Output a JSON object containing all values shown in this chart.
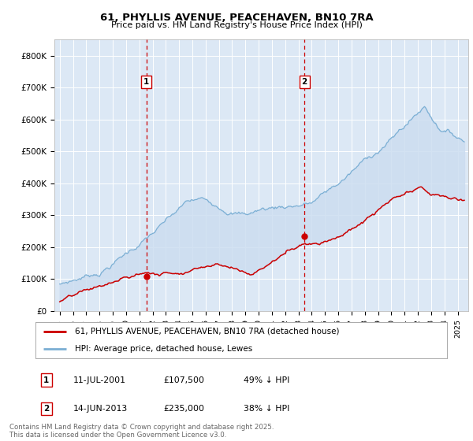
{
  "title": "61, PHYLLIS AVENUE, PEACEHAVEN, BN10 7RA",
  "subtitle": "Price paid vs. HM Land Registry's House Price Index (HPI)",
  "background_color": "#ffffff",
  "plot_bg_color": "#dce8f5",
  "ylim": [
    0,
    850000
  ],
  "yticks": [
    0,
    100000,
    200000,
    300000,
    400000,
    500000,
    600000,
    700000,
    800000
  ],
  "ytick_labels": [
    "£0",
    "£100K",
    "£200K",
    "£300K",
    "£400K",
    "£500K",
    "£600K",
    "£700K",
    "£800K"
  ],
  "legend_label_red": "61, PHYLLIS AVENUE, PEACEHAVEN, BN10 7RA (detached house)",
  "legend_label_blue": "HPI: Average price, detached house, Lewes",
  "footer_text": "Contains HM Land Registry data © Crown copyright and database right 2025.\nThis data is licensed under the Open Government Licence v3.0.",
  "sale1_label": "1",
  "sale1_date": "11-JUL-2001",
  "sale1_price": "£107,500",
  "sale1_hpi": "49% ↓ HPI",
  "sale1_year": 2001.53,
  "sale1_value": 107500,
  "sale2_label": "2",
  "sale2_date": "14-JUN-2013",
  "sale2_price": "£235,000",
  "sale2_hpi": "38% ↓ HPI",
  "sale2_year": 2013.45,
  "sale2_value": 235000,
  "red_color": "#cc0000",
  "blue_color": "#7bafd4",
  "fill_color": "#ccddf0",
  "dashed_color": "#cc0000",
  "grid_color": "#ffffff"
}
